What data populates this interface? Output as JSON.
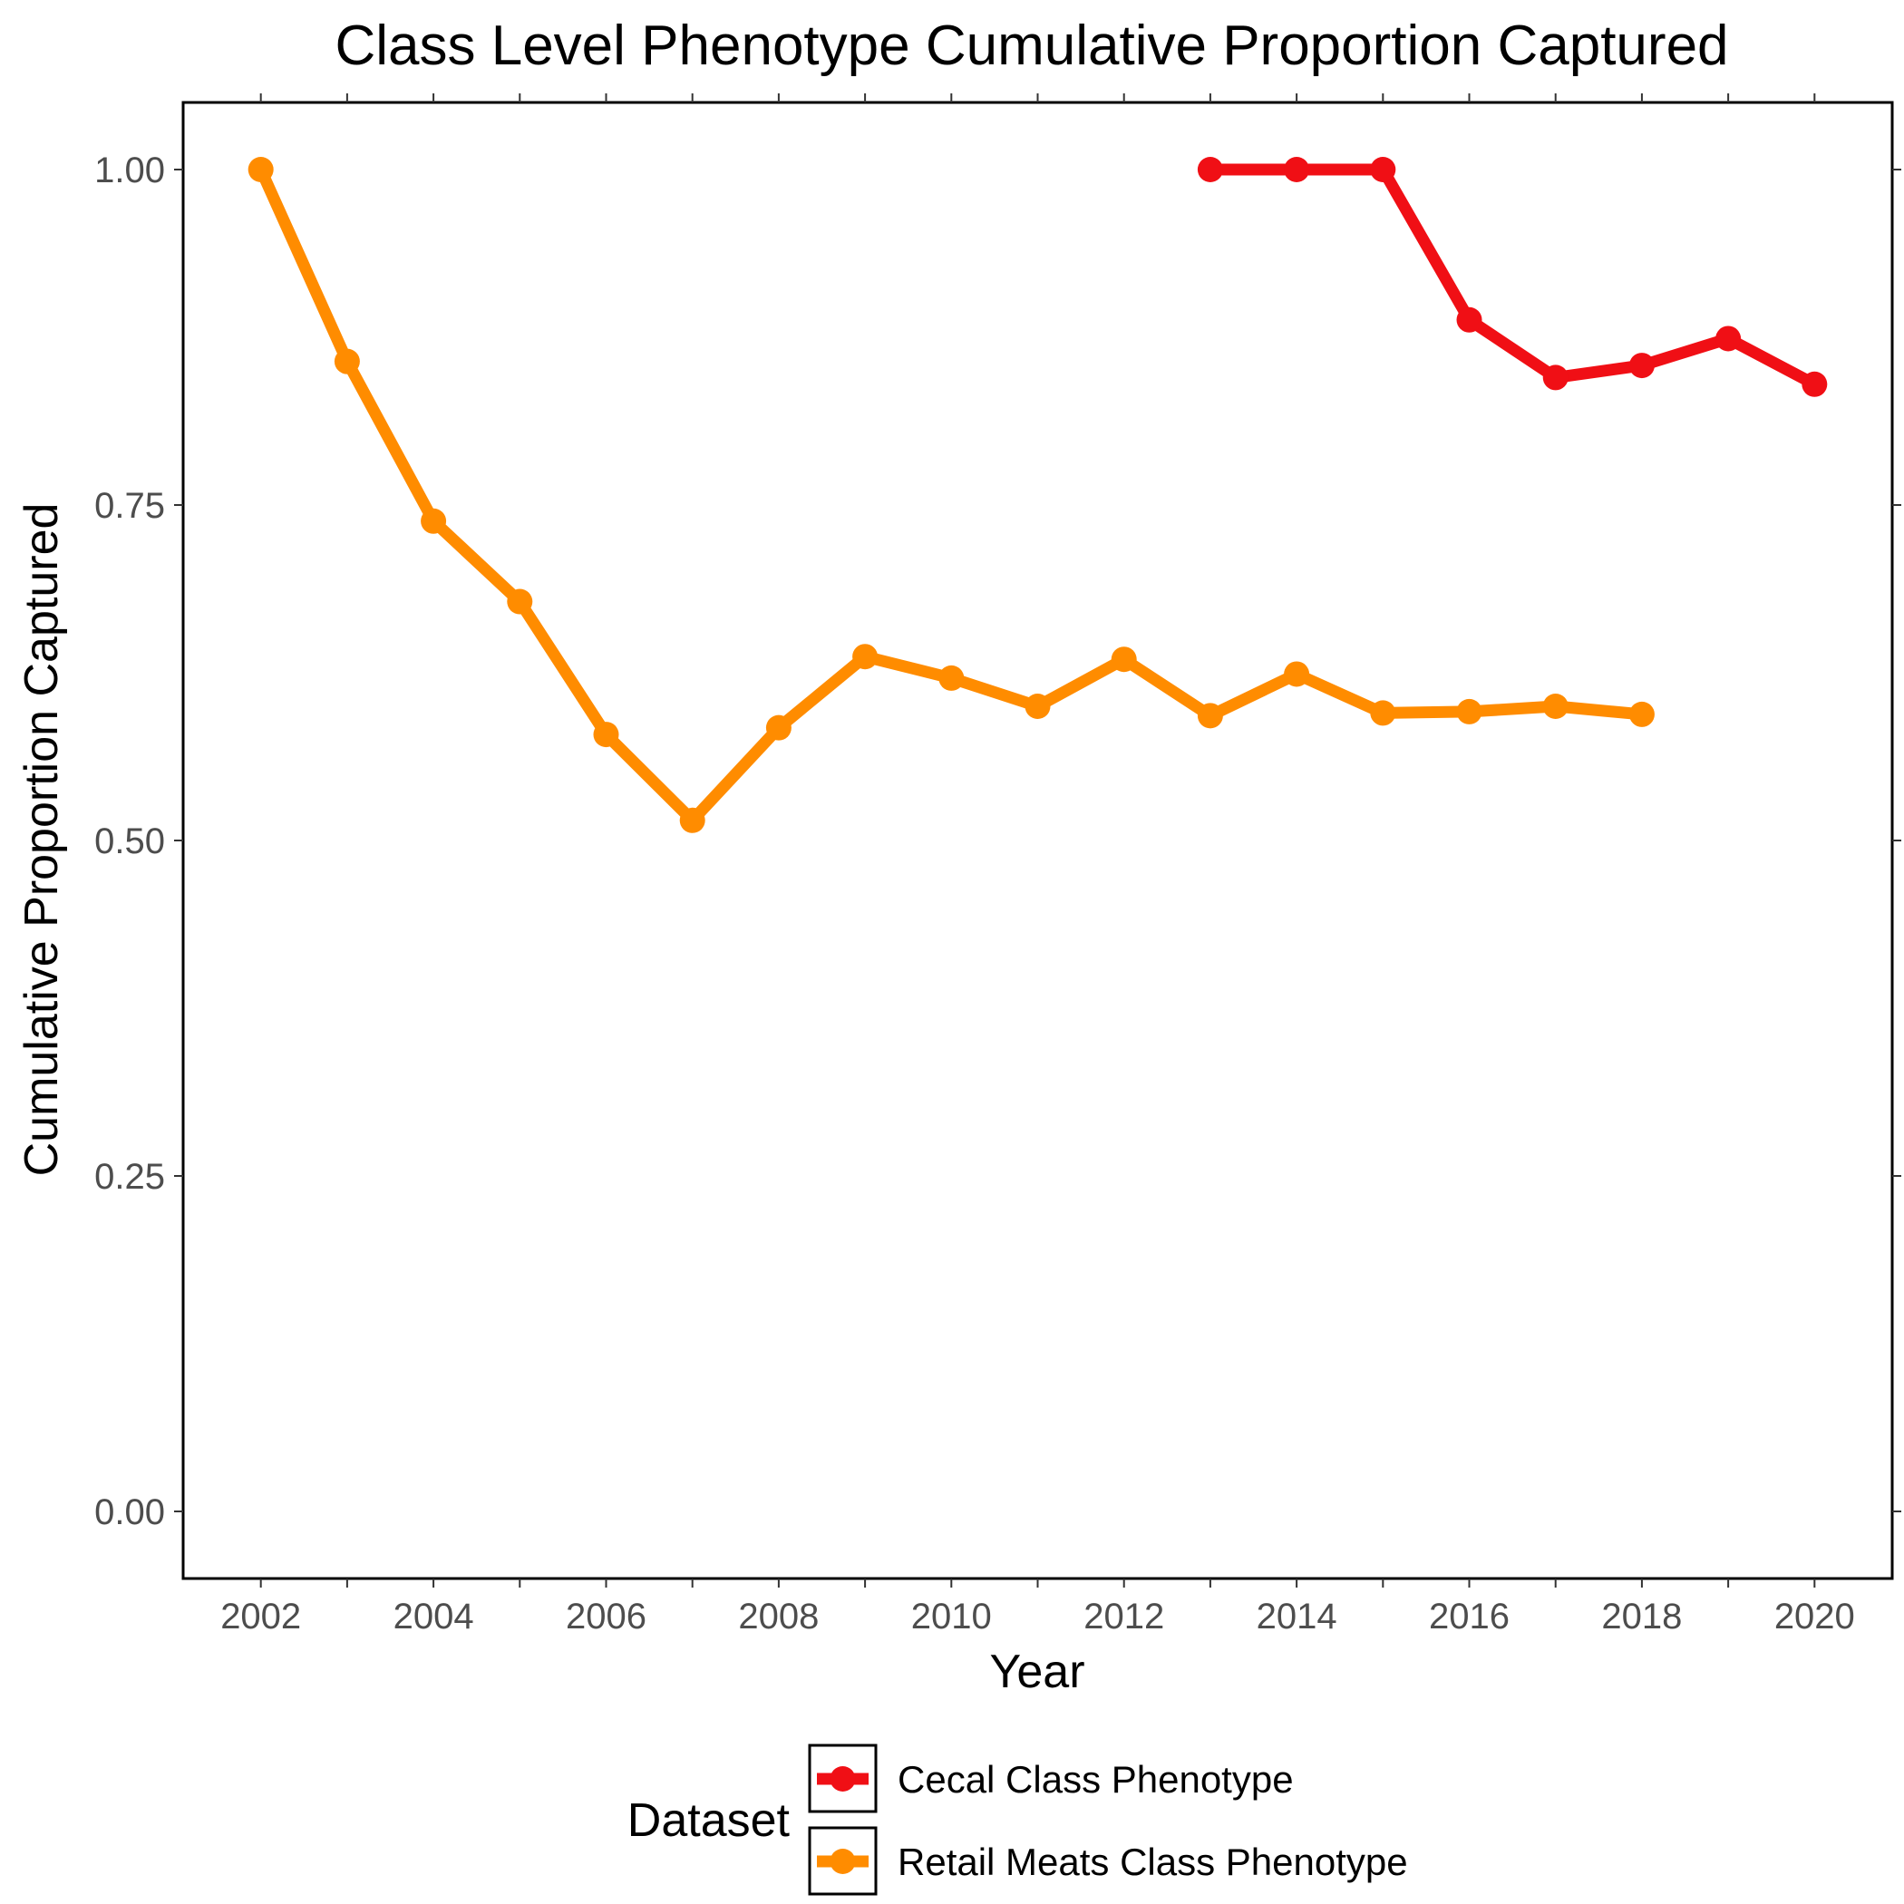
{
  "chart_data": {
    "type": "line",
    "title": "Class Level Phenotype Cumulative Proportion Captured",
    "xlabel": "Year",
    "ylabel": "Cumulative Proportion Captured",
    "xlim": [
      2001.1,
      2020.9
    ],
    "ylim": [
      -0.05,
      1.05
    ],
    "x_ticks": [
      2002,
      2004,
      2006,
      2008,
      2010,
      2012,
      2014,
      2016,
      2018,
      2020
    ],
    "x_tick_labels": [
      "2002",
      "2004",
      "2006",
      "2008",
      "2010",
      "2012",
      "2014",
      "2016",
      "2018",
      "2020"
    ],
    "y_ticks": [
      0,
      0.25,
      0.5,
      0.75,
      1.0
    ],
    "y_tick_labels": [
      "0.00",
      "0.25",
      "0.50",
      "0.75",
      "1.00"
    ],
    "grid": false,
    "legend": {
      "title": "Dataset",
      "placement": "bottom"
    },
    "series": [
      {
        "name": "Cecal Class Phenotype",
        "color": "#f00f15",
        "x": [
          2013,
          2014,
          2015,
          2016,
          2017,
          2018,
          2019,
          2020
        ],
        "y": [
          1.0,
          1.0,
          1.0,
          0.888,
          0.845,
          0.854,
          0.874,
          0.84
        ]
      },
      {
        "name": "Retail Meats Class Phenotype",
        "color": "#ff8c00",
        "x": [
          2002,
          2003,
          2004,
          2005,
          2006,
          2007,
          2008,
          2009,
          2010,
          2011,
          2012,
          2013,
          2014,
          2015,
          2016,
          2017,
          2018
        ],
        "y": [
          1.0,
          0.857,
          0.738,
          0.678,
          0.579,
          0.515,
          0.584,
          0.637,
          0.621,
          0.6,
          0.635,
          0.593,
          0.624,
          0.595,
          0.596,
          0.6,
          0.594
        ]
      }
    ]
  }
}
